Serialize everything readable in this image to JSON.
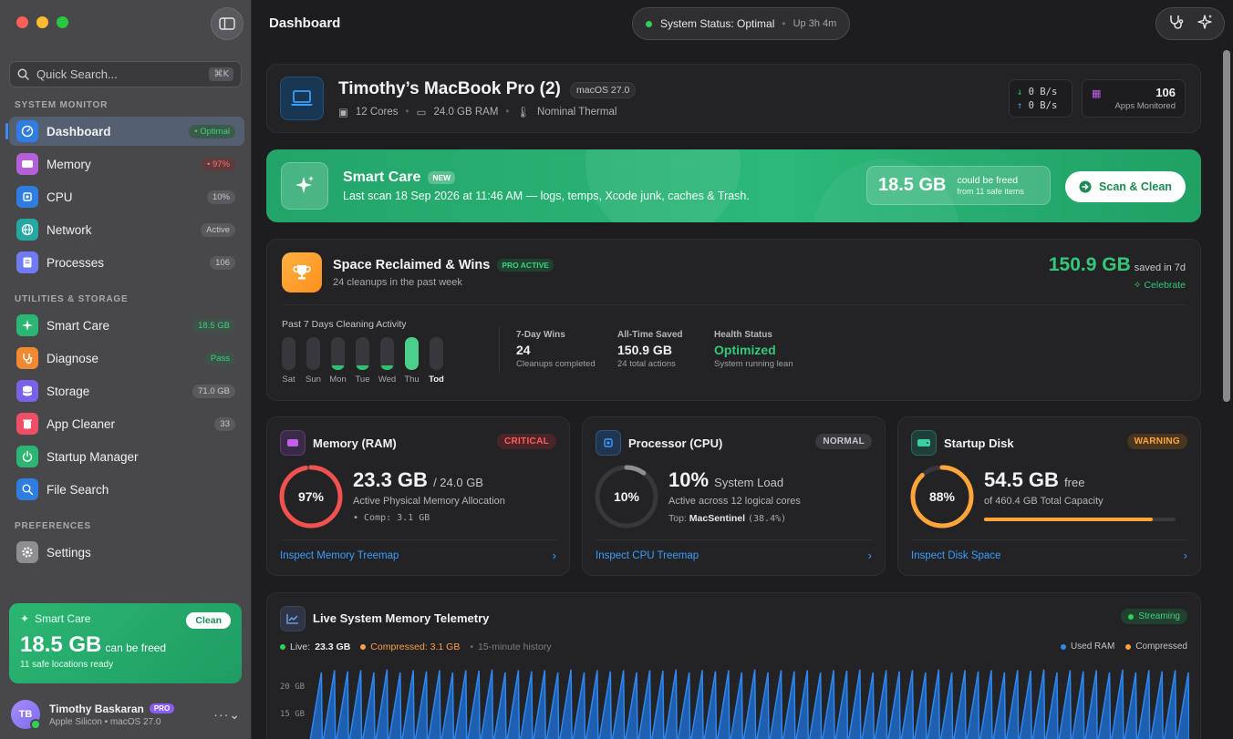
{
  "sidebar": {
    "search_placeholder": "Quick Search...",
    "search_shortcut": "⌘K",
    "sections": {
      "monitor": "SYSTEM MONITOR",
      "utilities": "UTILITIES & STORAGE",
      "preferences": "PREFERENCES"
    },
    "items": [
      {
        "label": "Dashboard",
        "badge": "• Optimal"
      },
      {
        "label": "Memory",
        "badge": "• 97%"
      },
      {
        "label": "CPU",
        "badge": "10%"
      },
      {
        "label": "Network",
        "badge": "Active"
      },
      {
        "label": "Processes",
        "badge": "106"
      },
      {
        "label": "Smart Care",
        "badge": "18.5 GB"
      },
      {
        "label": "Diagnose",
        "badge": "Pass"
      },
      {
        "label": "Storage",
        "badge": "71.0 GB"
      },
      {
        "label": "App Cleaner",
        "badge": "33"
      },
      {
        "label": "Startup Manager",
        "badge": ""
      },
      {
        "label": "File Search",
        "badge": ""
      },
      {
        "label": "Settings",
        "badge": ""
      }
    ],
    "smart_card": {
      "title": "Smart Care",
      "button": "Clean",
      "value": "18.5 GB",
      "value_suffix": "can be freed",
      "sub": "11 safe locations ready"
    },
    "user": {
      "initials": "TB",
      "name": "Timothy Baskaran",
      "tier": "PRO",
      "os": "Apple Silicon • macOS 27.0",
      "more": "···⌄"
    }
  },
  "header": {
    "title": "Dashboard",
    "status": "System Status: Optimal",
    "uptime": "Up 3h 4m"
  },
  "device": {
    "name": "Timothy’s MacBook Pro (2)",
    "os": "macOS 27.0",
    "cores": "12 Cores",
    "ram": "24.0 GB RAM",
    "thermal": "Nominal Thermal",
    "down": "0 B/s",
    "up": "0 B/s",
    "apps_count": "106",
    "apps_label": "Apps Monitored"
  },
  "banner": {
    "title": "Smart Care",
    "tag": "NEW",
    "sub": "Last scan 18 Sep 2026 at 11:46 AM — logs, temps, Xcode junk, caches & Trash.",
    "freed_value": "18.5 GB",
    "freed_label": "could be freed",
    "freed_sub": "from 11 safe items",
    "button": "Scan & Clean"
  },
  "wins": {
    "title": "Space Reclaimed & Wins",
    "tag": "PRO ACTIVE",
    "sub": "24 cleanups in the past week",
    "big_value": "150.9 GB",
    "big_suffix": "saved in 7d",
    "celebrate": "Celebrate",
    "activity_label": "Past 7 Days Cleaning Activity",
    "days": [
      {
        "label": "Sat",
        "level": 0
      },
      {
        "label": "Sun",
        "level": 0
      },
      {
        "label": "Mon",
        "level": 0.15
      },
      {
        "label": "Tue",
        "level": 0.15
      },
      {
        "label": "Wed",
        "level": 0.15
      },
      {
        "label": "Thu",
        "level": 1.0
      },
      {
        "label": "Tod",
        "level": 0
      }
    ],
    "stats": [
      {
        "key": "7-Day Wins",
        "value": "24",
        "sub": "Cleanups completed"
      },
      {
        "key": "All-Time Saved",
        "value": "150.9 GB",
        "sub": "24 total actions"
      },
      {
        "key": "Health Status",
        "value": "Optimized",
        "sub": "System running lean"
      }
    ]
  },
  "memory": {
    "title": "Memory (RAM)",
    "tag": "CRITICAL",
    "percent": 97,
    "percent_label": "97%",
    "value": "23.3 GB",
    "value_suffix": "/ 24.0 GB",
    "desc": "Active Physical Memory Allocation",
    "meta": "• Comp: 3.1 GB",
    "link": "Inspect Memory Treemap",
    "color": "#f2524f"
  },
  "cpu": {
    "title": "Processor (CPU)",
    "tag": "NORMAL",
    "percent": 10,
    "percent_label": "10%",
    "value": "10%",
    "value_suffix": "System Load",
    "desc": "Active across 12 logical cores",
    "meta_label": "Top:",
    "meta_value": "MacSentinel",
    "meta_extra": "(38.4%)",
    "link": "Inspect CPU Treemap",
    "color": "#8e8e93"
  },
  "disk": {
    "title": "Startup Disk",
    "tag": "WARNING",
    "percent": 88,
    "percent_label": "88%",
    "value": "54.5 GB",
    "value_suffix": "free",
    "desc": "of 460.4 GB Total Capacity",
    "link": "Inspect Disk Space",
    "color": "#ffa53a"
  },
  "telemetry": {
    "title": "Live System Memory Telemetry",
    "streaming": "Streaming",
    "live_label": "Live:",
    "live_value": "23.3 GB",
    "compressed": "Compressed: 3.1 GB",
    "history": "15-minute history",
    "key_used": "Used RAM",
    "key_compressed": "Compressed",
    "yticks": [
      "20 GB",
      "15 GB"
    ]
  },
  "chart_data": {
    "type": "area",
    "series": [
      {
        "name": "Used RAM",
        "values": [
          22,
          23,
          22.5,
          23,
          22,
          23.3,
          22,
          23,
          22.5,
          23,
          22,
          23,
          22.8,
          23.3
        ]
      }
    ],
    "yticks": [
      "20 GB",
      "15 GB"
    ],
    "colors": {
      "used": "#2f87f0",
      "compressed": "#ff9f45"
    }
  }
}
